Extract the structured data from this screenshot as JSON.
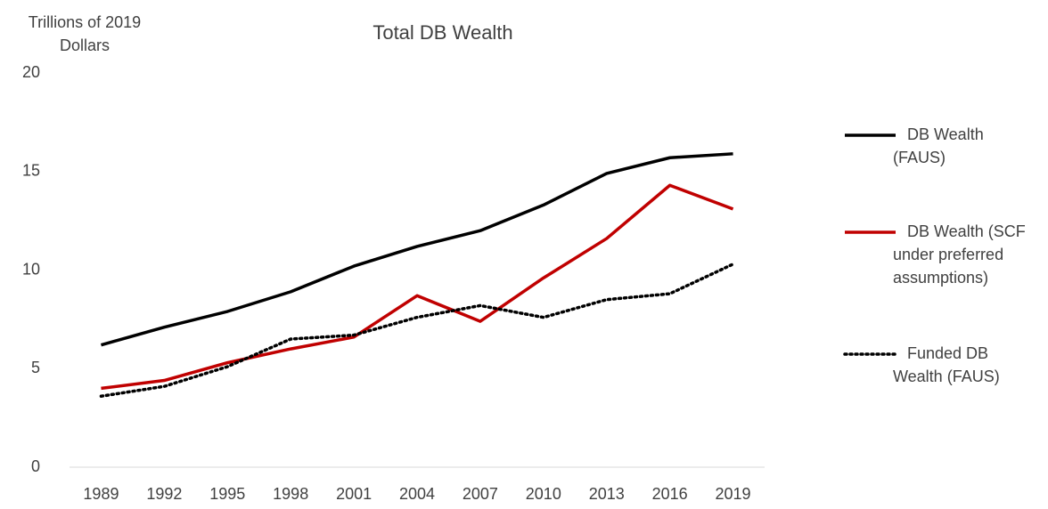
{
  "chart_data": {
    "type": "line",
    "title": "Total DB Wealth",
    "y_label": "Trillions of 2019 Dollars",
    "categories": [
      "1989",
      "1992",
      "1995",
      "1998",
      "2001",
      "2004",
      "2007",
      "2010",
      "2013",
      "2016",
      "2019"
    ],
    "series": [
      {
        "name": "DB Wealth (FAUS)",
        "color": "#000000",
        "style": "solid",
        "values": [
          6.2,
          7.1,
          7.9,
          8.9,
          10.2,
          11.2,
          12.0,
          13.3,
          14.9,
          15.7,
          15.9
        ]
      },
      {
        "name": "DB Wealth (SCF under preferred assumptions)",
        "color": "#c00000",
        "style": "solid",
        "values": [
          4.0,
          4.4,
          5.3,
          6.0,
          6.6,
          8.7,
          7.4,
          9.6,
          11.6,
          14.3,
          13.1
        ]
      },
      {
        "name": "Funded DB Wealth (FAUS)",
        "color": "#000000",
        "style": "dotted",
        "values": [
          3.6,
          4.1,
          5.1,
          6.5,
          6.7,
          7.6,
          8.2,
          7.6,
          8.5,
          8.8,
          10.3
        ]
      }
    ],
    "ylim": [
      0,
      20
    ],
    "yticks": [
      0,
      5,
      10,
      15,
      20
    ],
    "grid": false,
    "legend": "right"
  }
}
